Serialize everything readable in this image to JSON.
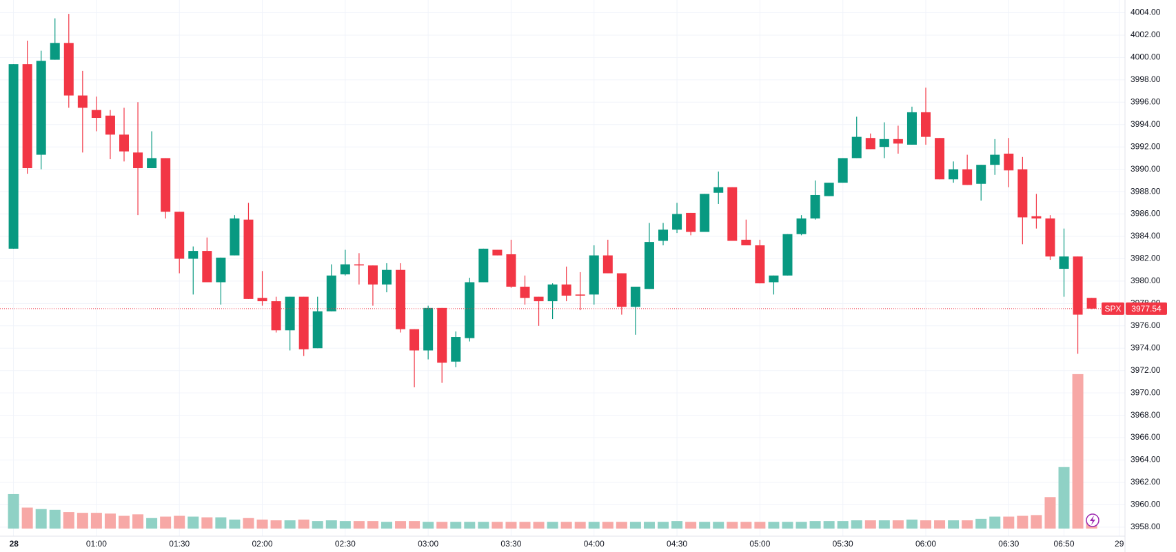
{
  "chart_data": {
    "type": "candlestick",
    "categories": [
      "28",
      null,
      null,
      null,
      null,
      null,
      "01:00",
      null,
      null,
      null,
      null,
      null,
      "01:30",
      null,
      null,
      null,
      null,
      null,
      "02:00",
      null,
      null,
      null,
      null,
      null,
      "02:30",
      null,
      null,
      null,
      null,
      null,
      "03:00",
      null,
      null,
      null,
      null,
      null,
      "03:30",
      null,
      null,
      null,
      null,
      null,
      "04:00",
      null,
      null,
      null,
      null,
      null,
      "04:30",
      null,
      null,
      null,
      null,
      null,
      "05:00",
      null,
      null,
      null,
      null,
      null,
      "05:30",
      null,
      null,
      null,
      null,
      null,
      "06:00",
      null,
      null,
      null,
      null,
      null,
      "06:30",
      null,
      null,
      null,
      "06:50",
      null,
      null,
      null,
      "29"
    ],
    "series": [
      {
        "name": "SPX",
        "up_color": "#089981",
        "down_color": "#f23645",
        "open": [
          3982.9,
          3999.4,
          3991.3,
          3999.8,
          4001.3,
          3996.6,
          3995.3,
          3994.8,
          3993.1,
          3991.5,
          3990.1,
          3991.0,
          3986.2,
          3982.0,
          3982.7,
          3979.9,
          3982.3,
          3985.5,
          3978.5,
          3978.2,
          3975.6,
          3978.6,
          3974.0,
          3977.3,
          3980.6,
          3981.5,
          3981.4,
          3979.7,
          3981.0,
          3975.7,
          3973.8,
          3977.6,
          3972.8,
          3974.9,
          3979.9,
          3982.8,
          3982.4,
          3979.5,
          3978.6,
          3978.2,
          3979.7,
          3978.8,
          3978.8,
          3982.3,
          3980.7,
          3977.7,
          3979.3,
          3983.6,
          3984.6,
          3986.1,
          3984.4,
          3987.9,
          3988.4,
          3983.7,
          3983.2,
          3979.9,
          3980.5,
          3984.2,
          3985.6,
          3987.6,
          3988.8,
          3991.0,
          3992.8,
          3992.0,
          3992.7,
          3992.2,
          3995.1,
          3992.8,
          3989.1,
          3990.0,
          3988.7,
          3990.4,
          3991.4,
          3990.0,
          3985.8,
          3985.6,
          3981.1,
          3982.2,
          3978.5,
          null,
          null
        ],
        "high": [
          3999.4,
          4001.5,
          4000.6,
          4003.5,
          4003.9,
          3998.8,
          3996.5,
          3995.3,
          3995.5,
          3996.0,
          3993.4,
          3991.0,
          3986.2,
          3983.1,
          3983.9,
          3982.1,
          3985.9,
          3987.0,
          3980.9,
          3978.6,
          3978.6,
          3978.6,
          3978.6,
          3981.5,
          3982.8,
          3982.5,
          3981.4,
          3981.6,
          3981.6,
          3975.7,
          3977.8,
          3977.6,
          3975.5,
          3980.3,
          3982.9,
          3982.8,
          3983.7,
          3980.5,
          3978.6,
          3979.8,
          3981.3,
          3980.8,
          3983.2,
          3983.7,
          3980.7,
          3979.5,
          3985.2,
          3985.2,
          3987.0,
          3986.1,
          3987.8,
          3989.8,
          3988.4,
          3985.5,
          3983.7,
          3980.5,
          3984.2,
          3985.9,
          3989.0,
          3988.8,
          3991.0,
          3994.7,
          3993.2,
          3994.2,
          3993.9,
          3995.6,
          3997.3,
          3992.8,
          3990.7,
          3991.3,
          3990.4,
          3992.7,
          3992.8,
          3991.1,
          3987.8,
          3985.9,
          3984.7,
          3982.2,
          3978.5,
          null,
          null
        ],
        "low": [
          3982.9,
          3989.6,
          3990.0,
          3999.8,
          3995.5,
          3991.5,
          3993.4,
          3990.9,
          3990.7,
          3985.9,
          3990.1,
          3985.6,
          3980.7,
          3978.8,
          3979.9,
          3977.9,
          3982.3,
          3978.4,
          3977.8,
          3975.4,
          3973.8,
          3973.3,
          3974.0,
          3977.3,
          3980.5,
          3979.7,
          3977.8,
          3979.0,
          3975.4,
          3970.5,
          3973.0,
          3970.9,
          3972.3,
          3974.6,
          3979.9,
          3982.3,
          3979.4,
          3977.9,
          3976.0,
          3976.6,
          3978.2,
          3977.4,
          3977.9,
          3980.7,
          3977.0,
          3975.2,
          3979.3,
          3983.2,
          3984.3,
          3984.1,
          3984.4,
          3986.9,
          3983.6,
          3983.2,
          3979.8,
          3978.8,
          3980.5,
          3984.1,
          3985.5,
          3987.6,
          3988.8,
          3991.0,
          3991.8,
          3991.0,
          3991.4,
          3992.2,
          3992.2,
          3989.1,
          3988.8,
          3988.6,
          3987.2,
          3989.5,
          3988.4,
          3983.3,
          3984.7,
          3981.9,
          3978.6,
          3973.5,
          3977.5,
          null,
          null
        ],
        "close": [
          3999.4,
          3990.1,
          3999.7,
          4001.3,
          3996.6,
          3995.5,
          3994.6,
          3993.1,
          3991.6,
          3990.1,
          3991.0,
          3986.2,
          3982.0,
          3982.7,
          3979.9,
          3982.1,
          3985.6,
          3978.4,
          3978.2,
          3975.6,
          3978.6,
          3973.9,
          3977.3,
          3980.5,
          3981.5,
          3981.4,
          3979.7,
          3981.0,
          3975.7,
          3973.8,
          3977.6,
          3972.7,
          3975.0,
          3979.9,
          3982.9,
          3982.3,
          3979.5,
          3978.5,
          3978.2,
          3979.7,
          3978.7,
          3978.7,
          3982.3,
          3980.7,
          3977.7,
          3979.5,
          3983.5,
          3984.6,
          3986.0,
          3984.4,
          3987.8,
          3988.4,
          3983.6,
          3983.2,
          3979.8,
          3980.5,
          3984.2,
          3985.6,
          3987.7,
          3988.8,
          3991.0,
          3992.9,
          3991.8,
          3992.7,
          3992.3,
          3995.1,
          3992.9,
          3989.1,
          3990.0,
          3988.6,
          3990.4,
          3991.3,
          3989.9,
          3985.7,
          3985.6,
          3982.2,
          3982.2,
          3977.0,
          3977.54,
          null,
          null
        ],
        "volume": [
          46,
          28,
          26,
          25,
          22,
          21,
          21,
          20,
          17,
          19,
          14,
          16,
          17,
          16,
          15,
          15,
          12,
          14,
          12,
          11,
          11,
          12,
          10,
          11,
          10,
          10,
          10,
          9,
          10,
          10,
          9,
          9,
          9,
          9,
          9,
          9,
          9,
          9,
          9,
          9,
          9,
          9,
          9,
          9,
          9,
          9,
          9,
          9,
          10,
          9,
          9,
          9,
          9,
          9,
          9,
          9,
          9,
          9,
          10,
          10,
          10,
          11,
          11,
          11,
          11,
          12,
          11,
          11,
          11,
          11,
          13,
          16,
          16,
          17,
          18,
          42,
          82,
          206,
          9,
          null,
          null
        ],
        "volume_up_color": "#8fd1c5",
        "volume_down_color": "#f7a8a6",
        "last_price": 3977.54,
        "last_price_color": "#f23645"
      }
    ],
    "ylim": [
      3958,
      4004
    ],
    "yticks": [
      {
        "value": 4004,
        "label": "4004.00"
      },
      {
        "value": 4002,
        "label": "4002.00"
      },
      {
        "value": 4000,
        "label": "4000.00"
      },
      {
        "value": 3998,
        "label": "3998.00"
      },
      {
        "value": 3996,
        "label": "3996.00"
      },
      {
        "value": 3994,
        "label": "3994.00"
      },
      {
        "value": 3992,
        "label": "3992.00"
      },
      {
        "value": 3990,
        "label": "3990.00"
      },
      {
        "value": 3988,
        "label": "3988.00"
      },
      {
        "value": 3986,
        "label": "3986.00"
      },
      {
        "value": 3984,
        "label": "3984.00"
      },
      {
        "value": 3982,
        "label": "3982.00"
      },
      {
        "value": 3980,
        "label": "3980.00"
      },
      {
        "value": 3978,
        "label": "3978.00"
      },
      {
        "value": 3976,
        "label": "3976.00"
      },
      {
        "value": 3974,
        "label": "3974.00"
      },
      {
        "value": 3972,
        "label": "3972.00"
      },
      {
        "value": 3970,
        "label": "3970.00"
      },
      {
        "value": 3968,
        "label": "3968.00"
      },
      {
        "value": 3966,
        "label": "3966.00"
      },
      {
        "value": 3964,
        "label": "3964.00"
      },
      {
        "value": 3962,
        "label": "3962.00"
      },
      {
        "value": 3960,
        "label": "3960.00"
      },
      {
        "value": 3958,
        "label": "3958.00"
      }
    ],
    "grid": true
  }
}
